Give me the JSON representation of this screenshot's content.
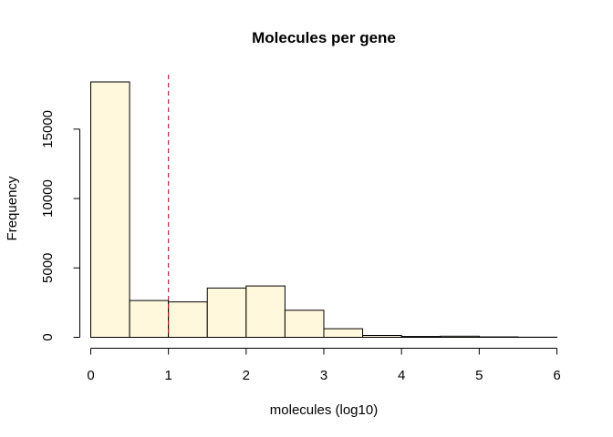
{
  "chart_data": {
    "type": "bar",
    "title": "Molecules per gene",
    "xlabel": "molecules (log10)",
    "ylabel": "Frequency",
    "bin_edges": [
      0,
      0.5,
      1,
      1.5,
      2,
      2.5,
      3,
      3.5,
      4,
      4.5,
      5,
      5.5,
      6
    ],
    "values": [
      18400,
      2650,
      2550,
      3550,
      3700,
      1950,
      620,
      130,
      60,
      80,
      30,
      10
    ],
    "xlim": [
      0,
      6
    ],
    "ylim": [
      0,
      18400
    ],
    "x_ticks": [
      0,
      1,
      2,
      3,
      4,
      5,
      6
    ],
    "x_tick_labels": [
      "0",
      "1",
      "2",
      "3",
      "4",
      "5",
      "6"
    ],
    "y_ticks": [
      0,
      5000,
      10000,
      15000
    ],
    "y_tick_labels": [
      "0",
      "5000",
      "10000",
      "15000"
    ],
    "reference_line": {
      "x": 1,
      "color": "#dc143c",
      "style": "dashed"
    },
    "colors": {
      "bar_fill": "#fff8dc",
      "bar_stroke": "#000000"
    },
    "grid": false
  }
}
